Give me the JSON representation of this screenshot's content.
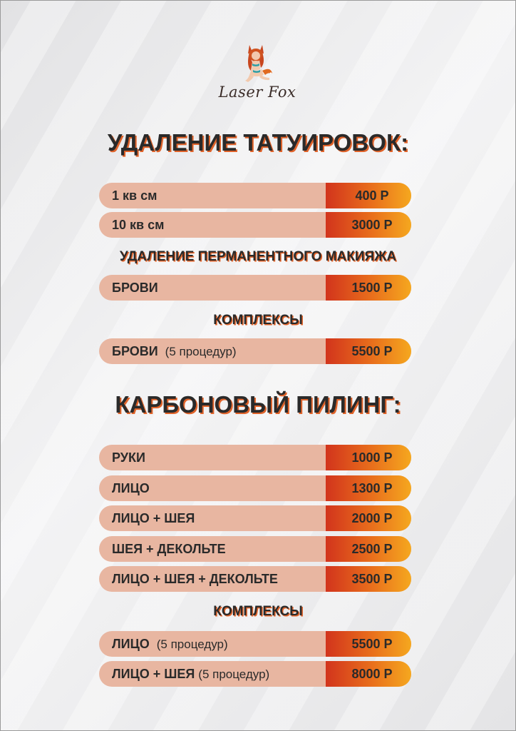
{
  "brand": {
    "name": "Laser Fox",
    "logo_icon": "fox-girl-icon"
  },
  "colors": {
    "accent": "#e0632a",
    "row_bg": "#e8b6a1",
    "price_gradient": [
      "#d2341c",
      "#e9701c",
      "#f5a81f"
    ],
    "text": "#2a2a2a"
  },
  "tattoo": {
    "title": "УДАЛЕНИЕ ТАТУИРОВОК:",
    "rows": [
      {
        "label": "1 кв см",
        "note": "",
        "price": "400 Р"
      },
      {
        "label": "10 кв см",
        "note": "",
        "price": "3000 Р"
      }
    ],
    "permanent_title": "УДАЛЕНИЕ ПЕРМАНЕНТНОГО МАКИЯЖА",
    "permanent_rows": [
      {
        "label": "БРОВИ",
        "note": "",
        "price": "1500 Р"
      }
    ],
    "complex_title": "КОМПЛЕКСЫ",
    "complex_rows": [
      {
        "label": "БРОВИ",
        "note": "(5 процедур)",
        "price": "5500 Р"
      }
    ]
  },
  "carbon": {
    "title": "КАРБОНОВЫЙ ПИЛИНГ:",
    "rows": [
      {
        "label": "РУКИ",
        "note": "",
        "price": "1000 Р"
      },
      {
        "label": "ЛИЦО",
        "note": "",
        "price": "1300 Р"
      },
      {
        "label": "ЛИЦО + ШЕЯ",
        "note": "",
        "price": "2000 Р"
      },
      {
        "label": "ШЕЯ + ДЕКОЛЬТЕ",
        "note": "",
        "price": "2500 Р"
      },
      {
        "label": "ЛИЦО + ШЕЯ + ДЕКОЛЬТЕ",
        "note": "",
        "price": "3500 Р"
      }
    ],
    "complex_title": "КОМПЛЕКСЫ",
    "complex_rows": [
      {
        "label": "ЛИЦО",
        "note": "(5 процедур)",
        "price": "5500 Р"
      },
      {
        "label": "ЛИЦО + ШЕЯ",
        "note": "(5 процедур)",
        "price": "8000 Р"
      }
    ]
  }
}
